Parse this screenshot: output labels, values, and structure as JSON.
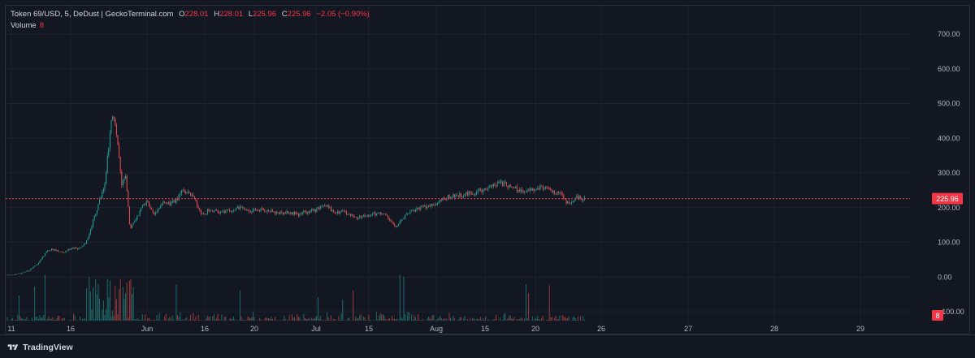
{
  "legend": {
    "symbol": "Token 69/USD, 5, DeDust | GeckoTerminal.com",
    "o_label": "O",
    "o_value": "228.01",
    "h_label": "H",
    "h_value": "228.01",
    "l_label": "L",
    "l_value": "225.96",
    "c_label": "C",
    "c_value": "225.96",
    "change": "−2.05 (−0.90%)",
    "volume_label": "Volume",
    "volume_value": "8"
  },
  "branding": {
    "name": "TradingView"
  },
  "colors": {
    "background": "#131722",
    "grid": "#1e222d",
    "up": "#26a69a",
    "down": "#ef5350",
    "price_line": "#f23645",
    "text": "#b2b5be"
  },
  "chart_data": {
    "type": "candlestick",
    "y_ticks": [
      "700.00",
      "600.00",
      "500.00",
      "400.00",
      "300.00",
      "200.00",
      "100.00",
      "0.00",
      "−100.00"
    ],
    "ylim": [
      -100,
      700
    ],
    "x_ticks": [
      "11",
      "16",
      "Jun",
      "16",
      "20",
      "Jul",
      "15",
      "Aug",
      "15",
      "20",
      "26",
      "27",
      "28",
      "29"
    ],
    "last_price": 225.96,
    "last_price_label": "225.96",
    "volume_label": "8",
    "price_path": [
      [
        0,
        5
      ],
      [
        0.05,
        10
      ],
      [
        0.08,
        20
      ],
      [
        0.11,
        40
      ],
      [
        0.14,
        75
      ],
      [
        0.16,
        80
      ],
      [
        0.2,
        70
      ],
      [
        0.23,
        85
      ],
      [
        0.25,
        80
      ],
      [
        0.28,
        100
      ],
      [
        0.32,
        200
      ],
      [
        0.345,
        260
      ],
      [
        0.36,
        380
      ],
      [
        0.375,
        480
      ],
      [
        0.39,
        400
      ],
      [
        0.405,
        270
      ],
      [
        0.42,
        300
      ],
      [
        0.435,
        140
      ],
      [
        0.445,
        150
      ],
      [
        0.46,
        170
      ],
      [
        0.48,
        205
      ],
      [
        0.5,
        215
      ],
      [
        0.52,
        180
      ],
      [
        0.55,
        215
      ],
      [
        0.58,
        210
      ],
      [
        0.6,
        220
      ],
      [
        0.62,
        250
      ],
      [
        0.65,
        240
      ],
      [
        0.67,
        215
      ],
      [
        0.69,
        180
      ],
      [
        0.72,
        195
      ],
      [
        0.75,
        185
      ],
      [
        0.78,
        190
      ],
      [
        0.82,
        200
      ],
      [
        0.86,
        190
      ],
      [
        0.9,
        195
      ],
      [
        0.94,
        188
      ],
      [
        0.97,
        185
      ],
      [
        1.0,
        185
      ],
      [
        1.03,
        180
      ],
      [
        1.06,
        188
      ],
      [
        1.1,
        195
      ],
      [
        1.13,
        205
      ],
      [
        1.16,
        190
      ],
      [
        1.2,
        185
      ],
      [
        1.24,
        170
      ],
      [
        1.27,
        178
      ],
      [
        1.3,
        180
      ],
      [
        1.33,
        185
      ],
      [
        1.36,
        165
      ],
      [
        1.38,
        140
      ],
      [
        1.4,
        165
      ],
      [
        1.43,
        190
      ],
      [
        1.46,
        200
      ],
      [
        1.5,
        205
      ],
      [
        1.53,
        215
      ],
      [
        1.56,
        230
      ],
      [
        1.6,
        235
      ],
      [
        1.63,
        240
      ],
      [
        1.66,
        245
      ],
      [
        1.7,
        255
      ],
      [
        1.73,
        265
      ],
      [
        1.76,
        270
      ],
      [
        1.8,
        255
      ],
      [
        1.83,
        245
      ],
      [
        1.86,
        255
      ],
      [
        1.9,
        260
      ],
      [
        1.93,
        245
      ],
      [
        1.96,
        240
      ],
      [
        1.99,
        210
      ],
      [
        2.02,
        228
      ],
      [
        2.05,
        226
      ]
    ]
  }
}
